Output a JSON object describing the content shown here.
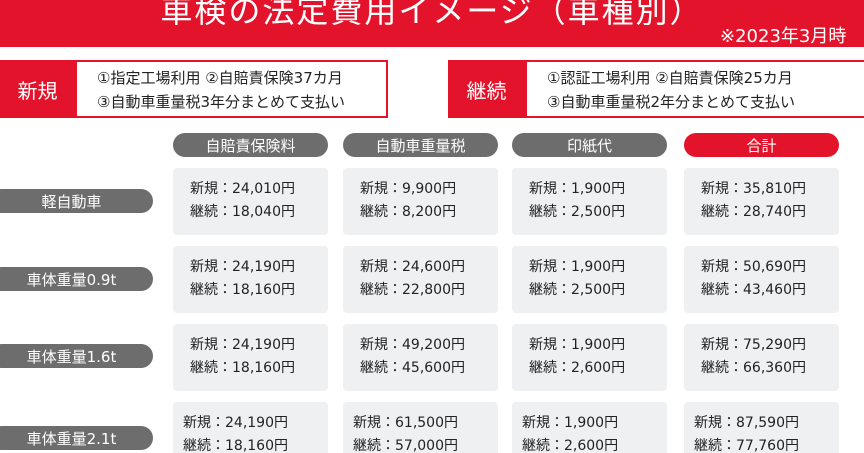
{
  "header": {
    "title": "車検の法定費用イメージ（車種別）",
    "note": "※2023年3月時"
  },
  "conditions": [
    {
      "label": "新規",
      "lines": [
        "①指定工場利用 ②自賠責保険37カ月",
        "③自動車重量税3年分まとめて支払い"
      ]
    },
    {
      "label": "継続",
      "lines": [
        "①認証工場利用 ②自賠責保険25カ月",
        "③自動車重量税2年分まとめて支払い"
      ]
    }
  ],
  "table": {
    "columns": [
      "自賠責保険料",
      "自動車重量税",
      "印紙代",
      "合計"
    ],
    "rows": [
      {
        "label": "軽自動車",
        "cells": [
          [
            "新規：24,010円",
            "継続：18,040円"
          ],
          [
            "新規：9,900円",
            "継続：8,200円"
          ],
          [
            "新規：1,900円",
            "継続：2,500円"
          ],
          [
            "新規：35,810円",
            "継続：28,740円"
          ]
        ]
      },
      {
        "label": "車体重量0.9t",
        "cells": [
          [
            "新規：24,190円",
            "継続：18,160円"
          ],
          [
            "新規：24,600円",
            "継続：22,800円"
          ],
          [
            "新規：1,900円",
            "継続：2,500円"
          ],
          [
            "新規：50,690円",
            "継続：43,460円"
          ]
        ]
      },
      {
        "label": "車体重量1.6t",
        "cells": [
          [
            "新規：24,190円",
            "継続：18,160円"
          ],
          [
            "新規：49,200円",
            "継続：45,600円"
          ],
          [
            "新規：1,900円",
            "継続：2,600円"
          ],
          [
            "新規：75,290円",
            "継続：66,360円"
          ]
        ]
      },
      {
        "label": "車体重量2.1t",
        "cells": [
          [
            "新規：24,190円",
            "継続：18,160円"
          ],
          [
            "新規：61,500円",
            "継続：57,000円"
          ],
          [
            "新規：1,900円",
            "継続：2,600円"
          ],
          [
            "新規：87,590円",
            "継続：77,760円"
          ]
        ]
      }
    ]
  }
}
